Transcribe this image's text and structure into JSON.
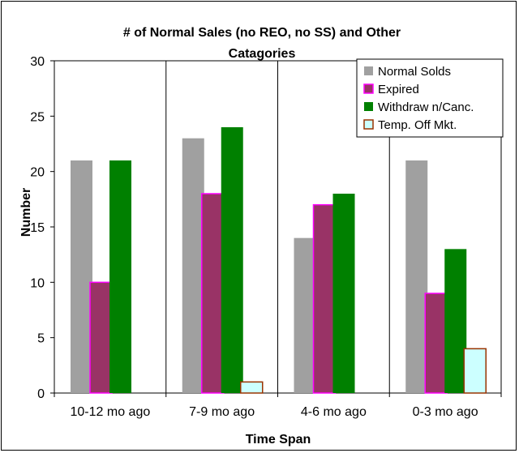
{
  "chart_data": {
    "type": "bar",
    "title_line1": "# of Normal Sales (no REO, no SS)  and Other",
    "title_line2": "Catagories",
    "xlabel": "Time Span",
    "ylabel": "Number",
    "categories": [
      "10-12 mo ago",
      "7-9 mo ago",
      "4-6 mo ago",
      "0-3 mo ago"
    ],
    "ylim": [
      0,
      30
    ],
    "yticks": [
      0,
      5,
      10,
      15,
      20,
      25,
      30
    ],
    "grid": "vertical category separators",
    "legend_position": "top-right",
    "series": [
      {
        "name": "Normal Solds",
        "values": [
          21,
          23,
          14,
          21
        ],
        "color": "#a0a0a0"
      },
      {
        "name": "Expired",
        "values": [
          10,
          18,
          17,
          9
        ],
        "color": "#993366",
        "border": "#ff00ff"
      },
      {
        "name": "Withdraw n/Canc.",
        "values": [
          21,
          24,
          18,
          13
        ],
        "color": "#008000"
      },
      {
        "name": "Temp. Off Mkt.",
        "values": [
          0,
          1,
          0,
          4
        ],
        "color": "#ccffff",
        "border": "#993300"
      }
    ]
  }
}
